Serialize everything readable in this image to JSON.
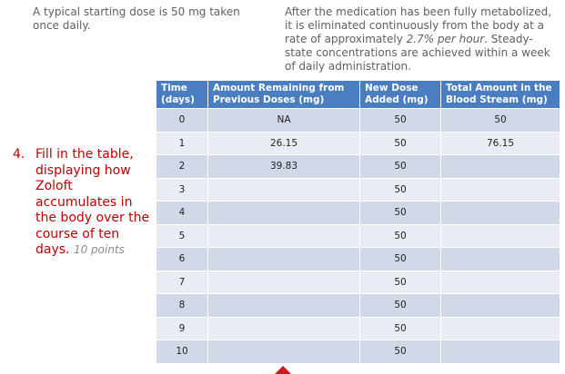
{
  "intro_left": "A typical starting dose is 50 mg taken once daily.",
  "intro_right": {
    "part1": "After the medication has been fully metabolized, it is eliminated continuously from the body at a rate of approximately ",
    "rate": "2.7% per hour",
    "part2": ".  Steady-state concentrations are achieved within a week of daily administration."
  },
  "question": {
    "number": "4.",
    "text": "Fill in the table, displaying how Zoloft accumulates in the body over the course of ten days.",
    "points": "10 points"
  },
  "table": {
    "headers": [
      "Time (days)",
      "Amount Remaining from Previous Doses (mg)",
      "New Dose Added (mg)",
      "Total Amount in the Blood Stream (mg)"
    ],
    "rows": [
      {
        "day": "0",
        "remaining": "NA",
        "dose": "50",
        "total": "50"
      },
      {
        "day": "1",
        "remaining": "26.15",
        "dose": "50",
        "total": "76.15"
      },
      {
        "day": "2",
        "remaining": "39.83",
        "dose": "50",
        "total": ""
      },
      {
        "day": "3",
        "remaining": "",
        "dose": "50",
        "total": ""
      },
      {
        "day": "4",
        "remaining": "",
        "dose": "50",
        "total": ""
      },
      {
        "day": "5",
        "remaining": "",
        "dose": "50",
        "total": ""
      },
      {
        "day": "6",
        "remaining": "",
        "dose": "50",
        "total": ""
      },
      {
        "day": "7",
        "remaining": "",
        "dose": "50",
        "total": ""
      },
      {
        "day": "8",
        "remaining": "",
        "dose": "50",
        "total": ""
      },
      {
        "day": "9",
        "remaining": "",
        "dose": "50",
        "total": ""
      },
      {
        "day": "10",
        "remaining": "",
        "dose": "50",
        "total": ""
      }
    ]
  },
  "colors": {
    "header_bg": "#4a7ec0",
    "row_odd": "#d1d8e8",
    "row_even": "#e9ecf3",
    "question": "#c00000",
    "arrow": "#d11a1a"
  }
}
